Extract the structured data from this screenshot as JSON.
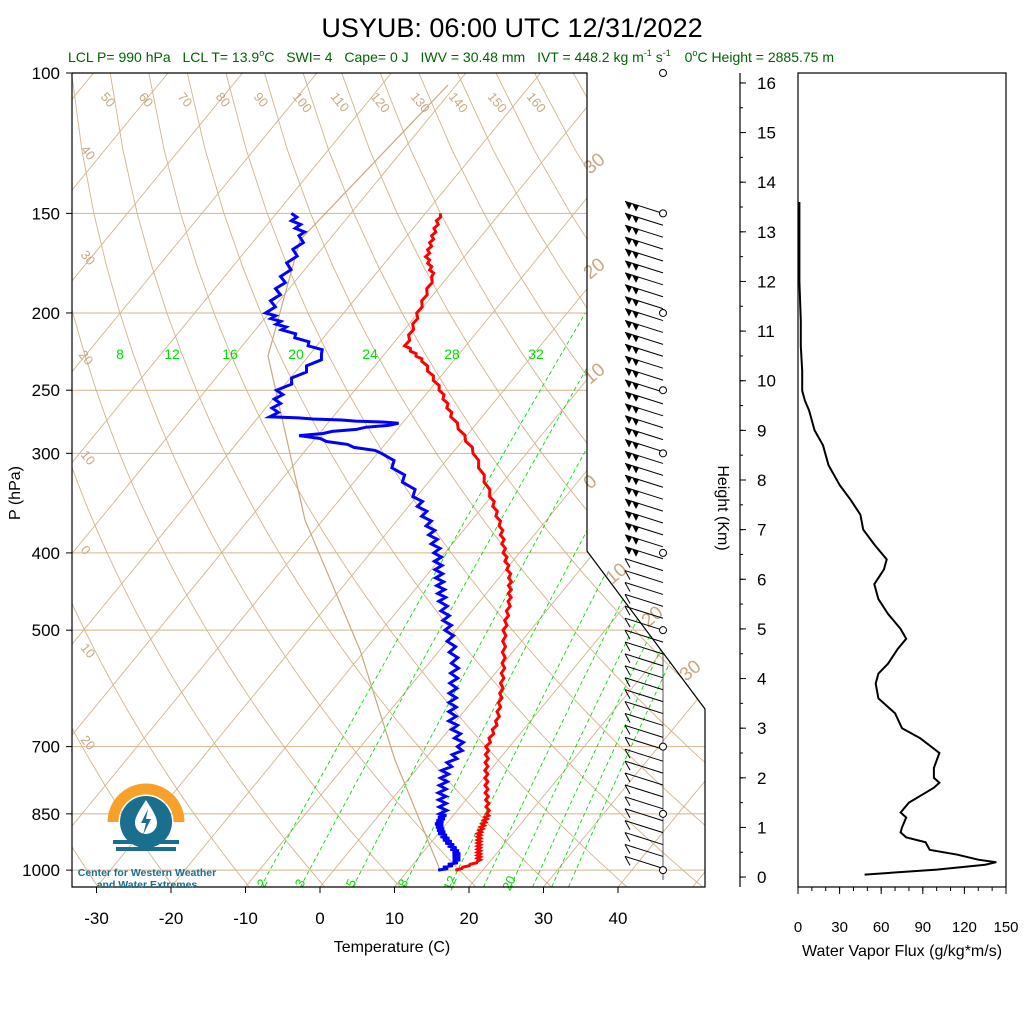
{
  "title": "USYUB: 06:00 UTC 12/31/2022",
  "subtitle": {
    "lcl_p": "LCL P= 990 hPa",
    "lcl_t_pre": "LCL T= 13.9",
    "lcl_t_unit": "C",
    "swi": "SWI= 4",
    "cape": "Cape= 0 J",
    "iwv": "IWV = 30.48 mm",
    "ivt_pre": "IVT = 448.2 kg m",
    "ivt_exp1": "-1",
    "ivt_mid": " s",
    "ivt_exp2": "-1",
    "zero_pre": "0",
    "zero_post": "C Height = 2885.75 m"
  },
  "logo": {
    "line1": "Center for Western Weather",
    "line2": "and Water Extremes",
    "colors": {
      "orange": "#f7a12a",
      "teal": "#1a6f8f"
    }
  },
  "colors": {
    "temperature": "#ff0000",
    "dewpoint": "#0000ff",
    "dry_adiabat": "#d2b48c",
    "isotherm": "#d2b48c",
    "mixing_ratio": "#00dd00",
    "subtitle": "#006400",
    "flux": "#000000"
  },
  "chart_data": [
    {
      "type": "line",
      "subtype": "skew-T log-P sounding",
      "xlabel": "Temperature (C)",
      "ylabel": "P (hPa)",
      "xticks": [
        -30,
        -20,
        -10,
        0,
        10,
        20,
        30,
        40
      ],
      "yticks": [
        100,
        150,
        200,
        250,
        300,
        400,
        500,
        700,
        850,
        1000
      ],
      "xlim": [
        -34,
        50
      ],
      "ylim": [
        1050,
        100
      ],
      "isotherm_labels": [
        "50",
        "60",
        "70",
        "80",
        "90",
        "100",
        "110",
        "120",
        "130",
        "140",
        "150",
        "160",
        "40",
        "30",
        "20",
        "10",
        "0",
        "10",
        "20"
      ],
      "isotherm_right_labels": [
        "30",
        "20",
        "10",
        "0",
        "10",
        "20",
        "30"
      ],
      "mixing_ratio_top_labels": [
        "8",
        "12",
        "16",
        "20",
        "24",
        "28",
        "32"
      ],
      "mixing_ratio_bottom_labels": [
        "2",
        "3",
        "5",
        "8",
        "12",
        "20"
      ],
      "series": [
        {
          "key": "temperature",
          "p": [
            1000,
            975,
            950,
            925,
            900,
            875,
            850,
            800,
            750,
            700,
            650,
            600,
            550,
            500,
            460,
            430,
            400,
            370,
            340,
            300,
            270,
            250,
            230,
            220,
            200,
            180,
            170,
            160,
            150
          ],
          "t": [
            16.5,
            18.5,
            17.5,
            16.5,
            15.5,
            15.0,
            14.5,
            12.0,
            9.5,
            7.0,
            5.5,
            3.0,
            0.0,
            -3.5,
            -6.0,
            -8.5,
            -12.0,
            -15.5,
            -20.0,
            -27.0,
            -34.0,
            -38.5,
            -44.0,
            -48.0,
            -50.0,
            -52.0,
            -55.0,
            -56.5,
            -58.0
          ]
        },
        {
          "key": "dewpoint",
          "p": [
            1000,
            975,
            950,
            925,
            900,
            875,
            850,
            800,
            750,
            700,
            650,
            600,
            550,
            500,
            460,
            430,
            400,
            370,
            340,
            300,
            285,
            275,
            270,
            250,
            225,
            210,
            200,
            180,
            160,
            150
          ],
          "td": [
            14.5,
            15.5,
            14.5,
            12.5,
            10.5,
            9.0,
            8.5,
            6.0,
            4.0,
            3.5,
            -0.5,
            -3.5,
            -6.5,
            -11.0,
            -15.0,
            -18.0,
            -21.0,
            -25.0,
            -30.0,
            -39.0,
            -52.0,
            -40.0,
            -58.0,
            -60.0,
            -58.0,
            -66.0,
            -70.0,
            -72.0,
            -74.0,
            -78.0
          ]
        }
      ]
    },
    {
      "type": "line",
      "xlabel": "Water Vapor Flux (g/kg*m/s)",
      "ylabel": "Height (Km)",
      "xticks": [
        0,
        30,
        60,
        90,
        120,
        150
      ],
      "yticks": [
        0,
        1,
        2,
        3,
        4,
        5,
        6,
        7,
        8,
        9,
        10,
        11,
        12,
        13,
        14,
        15,
        16
      ],
      "xlim": [
        0,
        150
      ],
      "ylim": [
        -0.2,
        16.2
      ],
      "series": [
        {
          "key": "flux",
          "height_km": [
            0.05,
            0.15,
            0.25,
            0.3,
            0.35,
            0.45,
            0.55,
            0.7,
            0.8,
            0.9,
            1.0,
            1.2,
            1.3,
            1.5,
            1.7,
            1.8,
            1.9,
            2.0,
            2.2,
            2.5,
            2.8,
            3.0,
            3.3,
            3.6,
            3.9,
            4.1,
            4.3,
            4.6,
            4.8,
            5.0,
            5.3,
            5.6,
            5.9,
            6.2,
            6.4,
            6.7,
            7.0,
            7.3,
            7.6,
            7.9,
            8.3,
            8.7,
            9.0,
            9.4,
            9.6,
            9.8,
            10.2,
            10.7,
            11.2,
            12.0,
            12.8,
            13.6
          ],
          "flux": [
            48,
            100,
            135,
            143,
            130,
            115,
            95,
            92,
            78,
            74,
            75,
            78,
            74,
            80,
            92,
            98,
            102,
            98,
            98,
            102,
            88,
            75,
            70,
            58,
            56,
            58,
            65,
            72,
            78,
            74,
            65,
            58,
            55,
            62,
            64,
            55,
            47,
            45,
            38,
            30,
            22,
            18,
            12,
            8,
            5,
            3,
            3,
            2,
            2,
            1,
            1,
            1
          ]
        }
      ]
    }
  ]
}
